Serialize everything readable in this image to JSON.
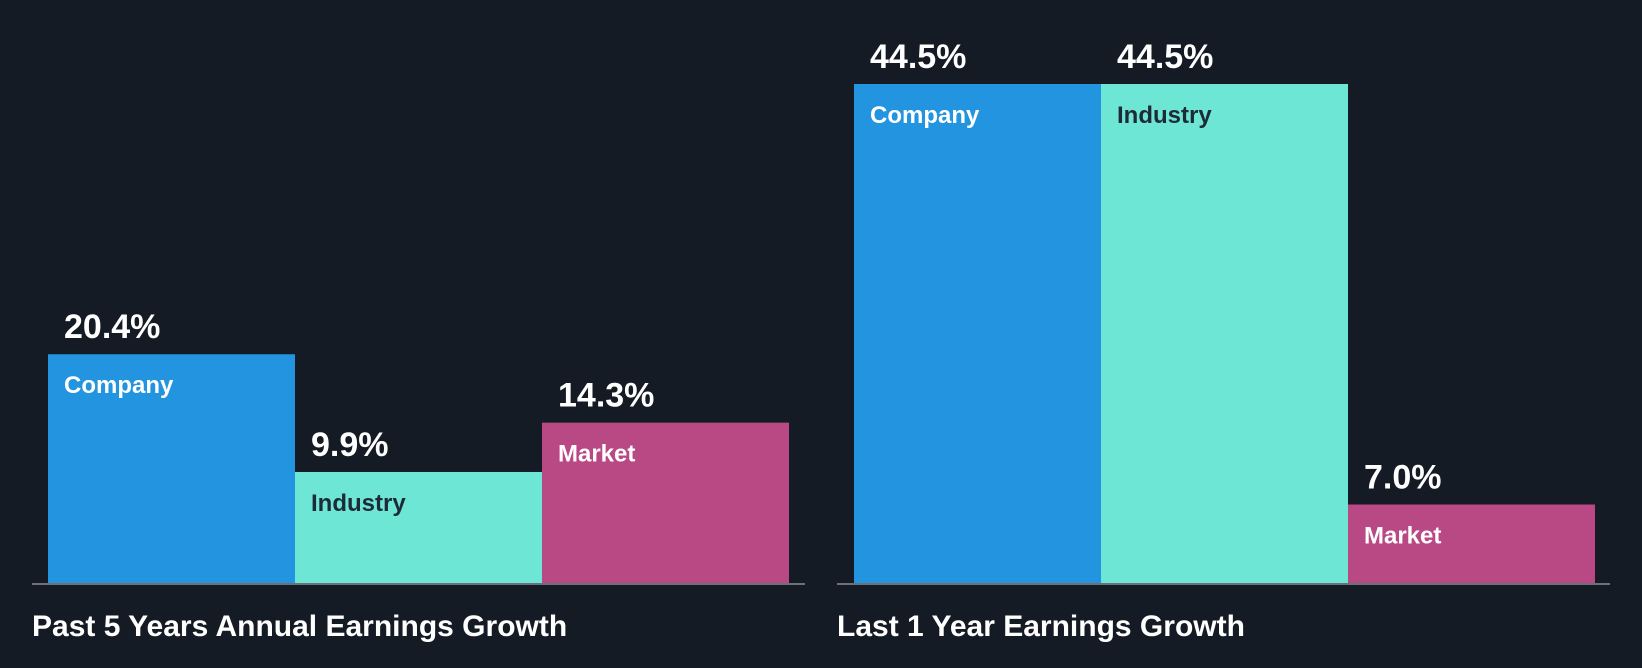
{
  "colors": {
    "background": "#151b24",
    "Company": "#2394e0",
    "Industry": "#6ee6d6",
    "Market": "#b84985",
    "axis": "#6b7078",
    "label_on_dark_bar": "#ffffff",
    "label_on_light_bar": "#1d2b36"
  },
  "chart_data": [
    {
      "type": "bar",
      "title": "Past 5 Years Annual Earnings Growth",
      "categories": [
        "Company",
        "Industry",
        "Market"
      ],
      "values": [
        20.4,
        9.9,
        14.3
      ],
      "value_labels": [
        "20.4%",
        "9.9%",
        "14.3%"
      ],
      "ylim": [
        0,
        44.5
      ],
      "grid": false
    },
    {
      "type": "bar",
      "title": "Last 1 Year Earnings Growth",
      "categories": [
        "Company",
        "Industry",
        "Market"
      ],
      "values": [
        44.5,
        44.5,
        7.0
      ],
      "value_labels": [
        "44.5%",
        "44.5%",
        "7.0%"
      ],
      "ylim": [
        0,
        44.5
      ],
      "grid": false
    }
  ]
}
